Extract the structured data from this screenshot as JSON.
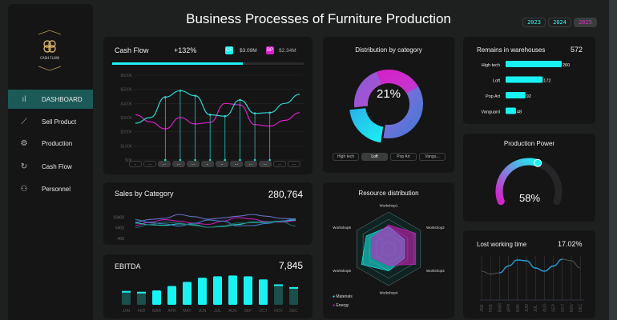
{
  "header": {
    "title": "Business Processes of Furniture Production",
    "years": [
      "2023",
      "2024",
      "2025"
    ],
    "selected_year": "2025"
  },
  "sidebar": {
    "logo_text": "CASH FLOW",
    "items": [
      {
        "label": "DASHBOARD",
        "icon": "bar-chart-icon",
        "active": true
      },
      {
        "label": "Sell Product",
        "icon": "line-chart-icon"
      },
      {
        "label": "Production",
        "icon": "gears-icon"
      },
      {
        "label": "Cash Flow",
        "icon": "money-cycle-icon"
      },
      {
        "label": "Personnel",
        "icon": "people-icon"
      }
    ]
  },
  "colors": {
    "cyan": "#19f2f2",
    "magenta": "#d81fc8",
    "teal_dark": "#1c5a58",
    "panel": "#151516"
  },
  "cash_flow": {
    "title": "Cash Flow",
    "change": "+132%",
    "cf_badge": "CF",
    "cf_value": "$3.09M",
    "bp_badge": "BP",
    "bp_value": "$2.34M",
    "progress": 0.68,
    "y_ticks": [
      "$600K",
      "$500K",
      "$400K",
      "$300K",
      "$200K",
      "$100K",
      "$0K"
    ],
    "month_buttons": [
      "..",
      "...",
      "...",
      "...",
      "...",
      "..",
      "..",
      "...",
      "...",
      "...",
      "...",
      "..."
    ],
    "chart_data": {
      "type": "line",
      "ylim": [
        0,
        600000
      ],
      "series": [
        {
          "name": "CF",
          "values": [
            260000,
            300000,
            445000,
            490000,
            455000,
            320000,
            310000,
            425000,
            330000,
            335000,
            400000,
            465000
          ]
        },
        {
          "name": "BP",
          "values": [
            320000,
            270000,
            220000,
            300000,
            255000,
            265000,
            400000,
            390000,
            250000,
            240000,
            280000,
            335000
          ]
        }
      ]
    }
  },
  "sales": {
    "title": "Sales by Category",
    "total": "280,764",
    "y_ticks": [
      "10400",
      "5400",
      "400"
    ],
    "chart_data": {
      "type": "line",
      "ylim": [
        400,
        15400
      ],
      "series": [
        {
          "values": [
            8000,
            9300,
            9800,
            11600,
            10600,
            9400,
            10000,
            10800,
            11600,
            10800,
            9800,
            9500
          ]
        },
        {
          "values": [
            6500,
            8000,
            9200,
            8500,
            7500,
            7000,
            8500,
            10200,
            9500,
            8200,
            8000,
            8700
          ]
        },
        {
          "values": [
            7600,
            6800,
            6500,
            7200,
            6800,
            5600,
            6000,
            6900,
            8000,
            8000,
            8500,
            9000
          ]
        },
        {
          "values": [
            9200,
            7800,
            7200,
            6200,
            7500,
            9000,
            8500,
            6300,
            6400,
            7400,
            8500,
            9500
          ]
        },
        {
          "values": [
            5500,
            7000,
            8000,
            7600,
            6400,
            5600,
            6300,
            7600,
            7700,
            7800,
            8200,
            6200
          ]
        }
      ]
    }
  },
  "ebitda": {
    "title": "EBITDA",
    "total": "7,845",
    "chart_data": {
      "type": "bar",
      "categories": [
        "JAN",
        "FEB",
        "MAR",
        "APR",
        "MAY",
        "JUN",
        "JUL",
        "AUG",
        "SEP",
        "OCT",
        "NOV",
        "DEC"
      ],
      "values": [
        500,
        470,
        520,
        680,
        830,
        980,
        1030,
        1060,
        1030,
        920,
        740,
        640
      ],
      "highlight": [
        "MAR",
        "APR",
        "MAY",
        "JUN",
        "JUL",
        "AUG",
        "SEP",
        "OCT"
      ]
    }
  },
  "distribution": {
    "title": "Distribution by category",
    "center_label": "21%",
    "tabs": [
      "High tech",
      "Loft",
      "Pop Art",
      "Vangu..."
    ],
    "selected_tab": "Loft",
    "chart_data": {
      "type": "pie",
      "categories": [
        "Pop Art",
        "High tech",
        "Loft",
        "Vanguard"
      ],
      "values": [
        22,
        36,
        21,
        21
      ]
    }
  },
  "resource": {
    "title": "Resource distribution",
    "legend": [
      "Materials",
      "Energy"
    ],
    "chart_data": {
      "type": "radar",
      "categories": [
        "Workshop1",
        "Workshop2",
        "Workshop3",
        "Workshop4",
        "Workshop5",
        "Workshop6"
      ],
      "series": [
        {
          "name": "Materials",
          "values": [
            0.6,
            0.5,
            0.5,
            0.6,
            0.85,
            0.7
          ]
        },
        {
          "name": "Energy",
          "values": [
            0.65,
            0.85,
            0.85,
            0.45,
            0.5,
            0.55
          ]
        }
      ]
    }
  },
  "warehouses": {
    "title": "Remains in warehouses",
    "total": "572",
    "chart_data": {
      "type": "bar",
      "categories": [
        "High tech",
        "Loft",
        "Pop Art",
        "Vanguard"
      ],
      "values": [
        260,
        172,
        92,
        48
      ]
    }
  },
  "production_power": {
    "title": "Production Power",
    "value": "58%",
    "fraction": 0.58
  },
  "lost_time": {
    "title": "Lost working time",
    "value": "17.02%",
    "chart_data": {
      "type": "line",
      "categories": [
        "JAN",
        "FEB",
        "MAR",
        "APR",
        "MAY",
        "JUN",
        "JUL",
        "AUG",
        "SEP",
        "OCT",
        "NOV",
        "DEC"
      ],
      "values": [
        0.42,
        0.35,
        0.38,
        0.55,
        0.7,
        0.68,
        0.5,
        0.42,
        0.55,
        0.72,
        0.68,
        0.5
      ],
      "highlight_range": [
        "MAR",
        "OCT"
      ]
    }
  }
}
